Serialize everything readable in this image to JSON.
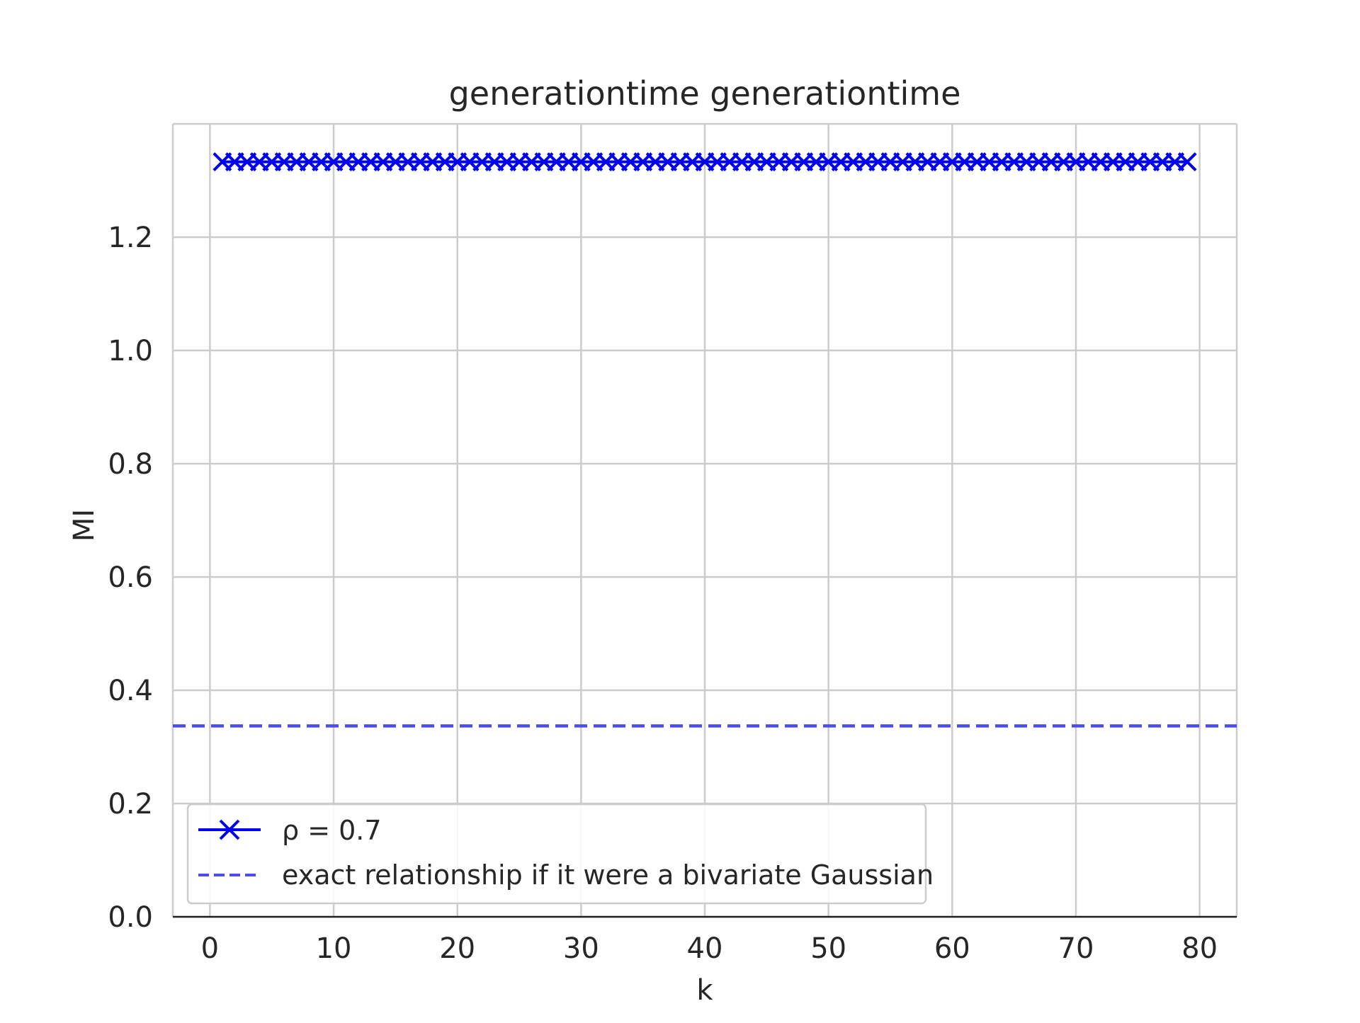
{
  "chart_data": {
    "type": "line",
    "title": "generationtime generationtime",
    "xlabel": "k",
    "ylabel": "MI",
    "xlim": [
      -3,
      83
    ],
    "ylim": [
      0,
      1.4
    ],
    "xticks": [
      0,
      10,
      20,
      30,
      40,
      50,
      60,
      70,
      80
    ],
    "yticks": [
      0.0,
      0.2,
      0.4,
      0.6,
      0.8,
      1.0,
      1.2
    ],
    "xtick_labels": [
      "0",
      "10",
      "20",
      "30",
      "40",
      "50",
      "60",
      "70",
      "80"
    ],
    "ytick_labels": [
      "0.0",
      "0.2",
      "0.4",
      "0.6",
      "0.8",
      "1.0",
      "1.2"
    ],
    "grid": true,
    "legend_position": "lower-left",
    "series": [
      {
        "name": "ρ = 0.7",
        "style": "solid line with x markers",
        "color": "#0000ee",
        "x_start": 1,
        "x_end": 79,
        "x_step": 1,
        "y_constant": 1.333
      },
      {
        "name": "exact relationship if it were a bivariate Gaussian",
        "style": "dashed line",
        "color": "#4d4dee",
        "x": [
          -3,
          83
        ],
        "y": [
          0.337,
          0.337
        ]
      }
    ]
  }
}
